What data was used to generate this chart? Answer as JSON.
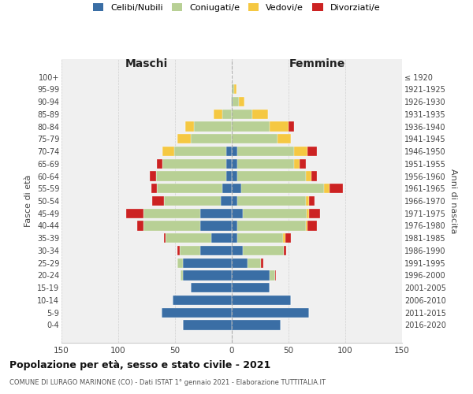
{
  "age_groups": [
    "100+",
    "95-99",
    "90-94",
    "85-89",
    "80-84",
    "75-79",
    "70-74",
    "65-69",
    "60-64",
    "55-59",
    "50-54",
    "45-49",
    "40-44",
    "35-39",
    "30-34",
    "25-29",
    "20-24",
    "15-19",
    "10-14",
    "5-9",
    "0-4"
  ],
  "birth_years": [
    "≤ 1920",
    "1921-1925",
    "1926-1930",
    "1931-1935",
    "1936-1940",
    "1941-1945",
    "1946-1950",
    "1951-1955",
    "1956-1960",
    "1961-1965",
    "1966-1970",
    "1971-1975",
    "1976-1980",
    "1981-1985",
    "1986-1990",
    "1991-1995",
    "1996-2000",
    "2001-2005",
    "2006-2010",
    "2011-2015",
    "2016-2020"
  ],
  "maschi": {
    "celibi": [
      0,
      0,
      0,
      0,
      0,
      0,
      5,
      5,
      5,
      8,
      10,
      28,
      28,
      18,
      28,
      43,
      43,
      36,
      52,
      62,
      43
    ],
    "coniugati": [
      0,
      0,
      1,
      8,
      33,
      36,
      46,
      56,
      62,
      58,
      50,
      50,
      50,
      40,
      18,
      5,
      2,
      0,
      0,
      0,
      0
    ],
    "vedovi": [
      0,
      0,
      0,
      8,
      8,
      12,
      10,
      0,
      0,
      0,
      0,
      0,
      0,
      0,
      0,
      0,
      0,
      0,
      0,
      0,
      0
    ],
    "divorziati": [
      0,
      0,
      0,
      0,
      0,
      0,
      0,
      5,
      5,
      5,
      10,
      15,
      5,
      2,
      2,
      0,
      0,
      0,
      0,
      0,
      0
    ]
  },
  "femmine": {
    "nubili": [
      0,
      0,
      1,
      0,
      0,
      0,
      5,
      5,
      5,
      8,
      5,
      10,
      5,
      5,
      10,
      14,
      33,
      33,
      52,
      68,
      43
    ],
    "coniugate": [
      0,
      2,
      5,
      18,
      33,
      40,
      50,
      50,
      60,
      73,
      60,
      56,
      60,
      40,
      36,
      12,
      5,
      0,
      0,
      0,
      0
    ],
    "vedove": [
      0,
      2,
      5,
      14,
      17,
      12,
      12,
      5,
      5,
      5,
      3,
      2,
      2,
      2,
      0,
      0,
      0,
      0,
      0,
      0,
      0
    ],
    "divorziate": [
      0,
      0,
      0,
      0,
      5,
      0,
      8,
      5,
      5,
      12,
      5,
      10,
      8,
      5,
      2,
      2,
      1,
      0,
      0,
      0,
      0
    ]
  },
  "colors": {
    "celibi": "#3a6ea5",
    "coniugati": "#b8d095",
    "vedovi": "#f5c842",
    "divorziati": "#cc2222"
  },
  "xlim": 150,
  "title": "Popolazione per età, sesso e stato civile - 2021",
  "subtitle": "COMUNE DI LURAGO MARINONE (CO) - Dati ISTAT 1° gennaio 2021 - Elaborazione TUTTITALIA.IT",
  "ylabel_left": "Fasce di età",
  "ylabel_right": "Anni di nascita",
  "label_maschi": "Maschi",
  "label_femmine": "Femmine",
  "bg_color": "#f0f0f0",
  "grid_color": "#cccccc",
  "legend_labels": [
    "Celibi/Nubili",
    "Coniugati/e",
    "Vedovi/e",
    "Divorziati/e"
  ]
}
